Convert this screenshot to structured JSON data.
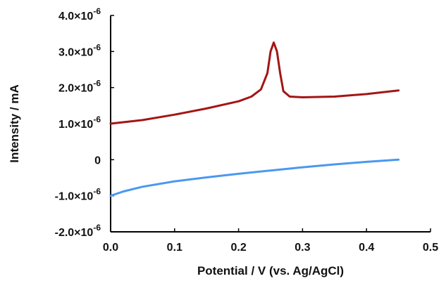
{
  "chart_data": {
    "type": "line",
    "xlabel": "Potential / V (vs. Ag/AgCl)",
    "ylabel": "Intensity / mA",
    "xlim": [
      0.0,
      0.5
    ],
    "ylim": [
      -2e-06,
      4e-06
    ],
    "x_ticks": [
      {
        "value": 0.0,
        "label": "0.0"
      },
      {
        "value": 0.1,
        "label": "0.1"
      },
      {
        "value": 0.2,
        "label": "0.2"
      },
      {
        "value": 0.3,
        "label": "0.3"
      },
      {
        "value": 0.4,
        "label": "0.4"
      },
      {
        "value": 0.5,
        "label": "0.5"
      }
    ],
    "y_ticks": [
      {
        "value": -2e-06,
        "label": "-2.0×10",
        "exp": "-6"
      },
      {
        "value": -1e-06,
        "label": "-1.0×10",
        "exp": "-6"
      },
      {
        "value": 0.0,
        "label": "0",
        "exp": ""
      },
      {
        "value": 1e-06,
        "label": "1.0×10",
        "exp": "-6"
      },
      {
        "value": 2e-06,
        "label": "2.0×10",
        "exp": "-6"
      },
      {
        "value": 3e-06,
        "label": "3.0×10",
        "exp": "-6"
      },
      {
        "value": 4e-06,
        "label": "4.0×10",
        "exp": "-6"
      }
    ],
    "grid": false,
    "series": [
      {
        "color": "#a31515",
        "x": [
          0.0,
          0.05,
          0.1,
          0.15,
          0.2,
          0.22,
          0.235,
          0.245,
          0.25,
          0.255,
          0.26,
          0.265,
          0.27,
          0.28,
          0.3,
          0.35,
          0.4,
          0.45
        ],
        "y": [
          1e-06,
          1.1e-06,
          1.25e-06,
          1.42e-06,
          1.62e-06,
          1.75e-06,
          1.95e-06,
          2.4e-06,
          3e-06,
          3.25e-06,
          3e-06,
          2.4e-06,
          1.9e-06,
          1.75e-06,
          1.73e-06,
          1.75e-06,
          1.82e-06,
          1.92e-06
        ]
      },
      {
        "color": "#4a98f0",
        "x": [
          0.0,
          0.02,
          0.05,
          0.1,
          0.15,
          0.2,
          0.25,
          0.3,
          0.35,
          0.4,
          0.45
        ],
        "y": [
          -1e-06,
          -8.8e-07,
          -7.5e-07,
          -6e-07,
          -4.9e-07,
          -3.9e-07,
          -3e-07,
          -2.1e-07,
          -1.3e-07,
          -6e-08,
          0.0
        ]
      }
    ]
  }
}
